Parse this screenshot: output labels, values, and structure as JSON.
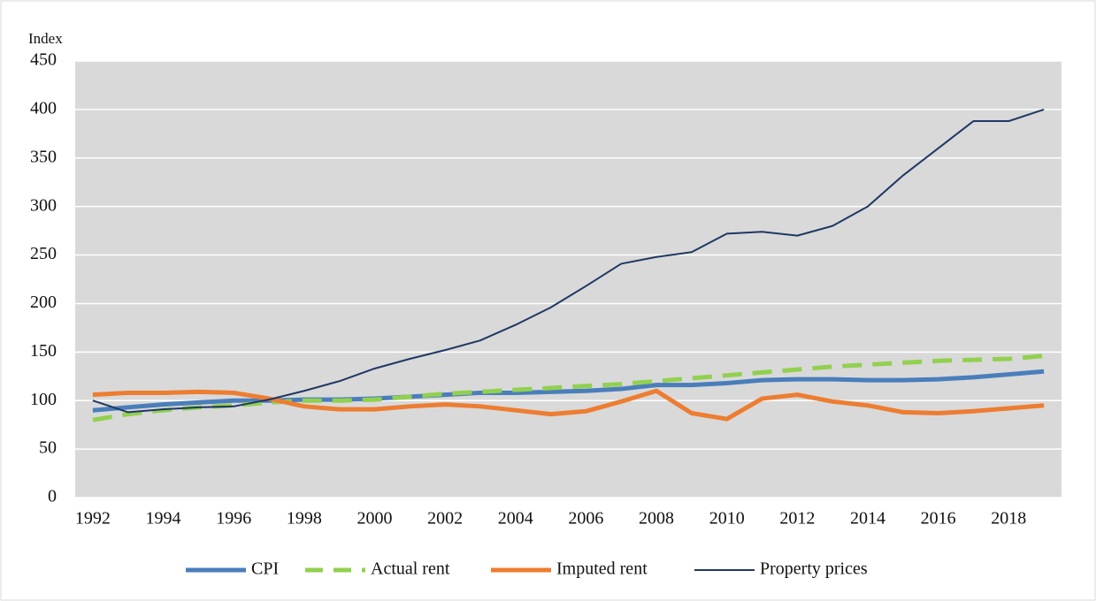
{
  "chart_data": {
    "type": "line",
    "y_axis_label": "Index",
    "x": [
      1992,
      1993,
      1994,
      1995,
      1996,
      1997,
      1998,
      1999,
      2000,
      2001,
      2002,
      2003,
      2004,
      2005,
      2006,
      2007,
      2008,
      2009,
      2010,
      2011,
      2012,
      2013,
      2014,
      2015,
      2016,
      2017,
      2018,
      2019
    ],
    "series": [
      {
        "name": "CPI",
        "color": "#4a7ebb",
        "values": [
          90,
          93,
          96,
          98,
          100,
          100,
          101,
          101,
          102,
          104,
          106,
          108,
          108,
          109,
          110,
          112,
          116,
          116,
          118,
          121,
          122,
          122,
          121,
          121,
          122,
          124,
          127,
          130
        ]
      },
      {
        "name": "Actual rent",
        "color": "#92d050",
        "dashed": true,
        "values": [
          80,
          86,
          90,
          93,
          95,
          98,
          100,
          100,
          101,
          104,
          107,
          109,
          111,
          113,
          115,
          117,
          120,
          123,
          126,
          129,
          132,
          135,
          137,
          139,
          141,
          142,
          143,
          146
        ]
      },
      {
        "name": "Imputed rent",
        "color": "#ed7d31",
        "values": [
          106,
          108,
          108,
          109,
          108,
          102,
          94,
          91,
          91,
          94,
          96,
          94,
          90,
          86,
          89,
          99,
          110,
          87,
          81,
          102,
          106,
          99,
          95,
          88,
          87,
          89,
          92,
          95
        ]
      },
      {
        "name": "Property prices",
        "color": "#1f3864",
        "values": [
          100,
          88,
          91,
          93,
          94,
          101,
          110,
          120,
          133,
          143,
          152,
          162,
          178,
          196,
          218,
          241,
          248,
          253,
          272,
          274,
          270,
          280,
          300,
          332,
          360,
          388,
          388,
          400
        ]
      }
    ],
    "xlim": [
      1991.5,
      2019.5
    ],
    "xticks": [
      1992,
      1994,
      1996,
      1998,
      2000,
      2002,
      2004,
      2006,
      2008,
      2010,
      2012,
      2014,
      2016,
      2018
    ],
    "ylim": [
      0,
      450
    ],
    "yticks": [
      0,
      50,
      100,
      150,
      200,
      250,
      300,
      350,
      400,
      450
    ],
    "grid": true
  }
}
